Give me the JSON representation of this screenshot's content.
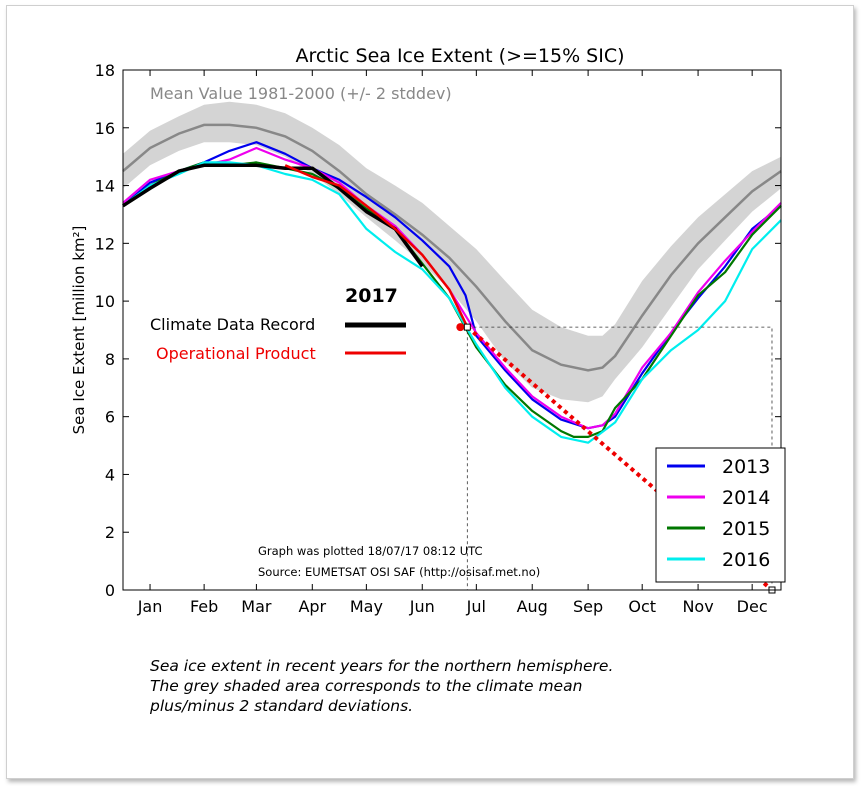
{
  "chart_data": {
    "type": "line",
    "title": "Arctic Sea Ice Extent (>=15% SIC)",
    "ylabel": "Sea Ice Extent [million km²]",
    "xlabel": "",
    "ylim": [
      0,
      18
    ],
    "yticks": [
      "0",
      "2",
      "4",
      "6",
      "8",
      "10",
      "12",
      "14",
      "16",
      "18"
    ],
    "xlim": [
      0,
      365
    ],
    "month_labels": [
      "Jan",
      "Feb",
      "Mar",
      "Apr",
      "May",
      "Jun",
      "Jul",
      "Aug",
      "Sep",
      "Oct",
      "Nov",
      "Dec"
    ],
    "month_positions": [
      15,
      45,
      74,
      105,
      135,
      166,
      196,
      227,
      258,
      288,
      319,
      349
    ],
    "grid": false,
    "mean_label": "Mean Value 1981-2000 (+/- 2 stddev)",
    "mean": {
      "x": [
        0,
        15,
        31,
        45,
        59,
        74,
        90,
        105,
        120,
        135,
        151,
        166,
        181,
        196,
        212,
        227,
        243,
        258,
        266,
        273,
        288,
        304,
        319,
        334,
        349,
        365
      ],
      "values": [
        14.5,
        15.3,
        15.8,
        16.1,
        16.1,
        16.0,
        15.7,
        15.2,
        14.5,
        13.7,
        13.0,
        12.3,
        11.5,
        10.5,
        9.3,
        8.3,
        7.8,
        7.6,
        7.7,
        8.1,
        9.5,
        10.9,
        12.0,
        12.9,
        13.8,
        14.5
      ],
      "upper": [
        15.1,
        15.9,
        16.4,
        16.8,
        16.9,
        16.8,
        16.5,
        16.0,
        15.4,
        14.6,
        14.0,
        13.4,
        12.6,
        11.8,
        10.7,
        9.7,
        9.1,
        8.8,
        8.8,
        9.2,
        10.7,
        11.9,
        12.9,
        13.7,
        14.5,
        15.0
      ],
      "lower": [
        13.9,
        14.7,
        15.2,
        15.5,
        15.5,
        15.4,
        15.0,
        14.4,
        13.7,
        12.9,
        12.1,
        11.3,
        10.4,
        9.3,
        7.9,
        7.0,
        6.6,
        6.5,
        6.7,
        7.3,
        8.4,
        9.8,
        11.1,
        12.1,
        13.1,
        13.9
      ]
    },
    "series": [
      {
        "name": "2013",
        "color": "#0000ee",
        "x": [
          0,
          15,
          31,
          45,
          59,
          74,
          90,
          105,
          120,
          135,
          151,
          166,
          181,
          190,
          196,
          212,
          227,
          243,
          258,
          266,
          273,
          288,
          304,
          319,
          334,
          349,
          365
        ],
        "values": [
          13.3,
          14.1,
          14.5,
          14.8,
          15.2,
          15.5,
          15.1,
          14.6,
          14.2,
          13.6,
          12.9,
          12.1,
          11.2,
          10.2,
          8.8,
          7.6,
          6.6,
          5.9,
          5.6,
          5.7,
          6.0,
          7.5,
          8.9,
          10.1,
          11.2,
          12.5,
          13.3
        ]
      },
      {
        "name": "2014",
        "color": "#ee00ee",
        "x": [
          0,
          15,
          31,
          45,
          59,
          74,
          90,
          105,
          120,
          135,
          151,
          166,
          181,
          196,
          212,
          227,
          243,
          258,
          266,
          273,
          288,
          304,
          319,
          334,
          349,
          365
        ],
        "values": [
          13.4,
          14.2,
          14.5,
          14.7,
          14.9,
          15.3,
          14.9,
          14.6,
          14.1,
          13.3,
          12.6,
          11.6,
          10.4,
          8.9,
          7.7,
          6.7,
          6.0,
          5.6,
          5.7,
          6.1,
          7.7,
          8.9,
          10.3,
          11.4,
          12.4,
          13.4
        ]
      },
      {
        "name": "2015",
        "color": "#007700",
        "x": [
          0,
          15,
          31,
          45,
          59,
          74,
          90,
          105,
          120,
          135,
          151,
          166,
          181,
          196,
          212,
          227,
          243,
          250,
          258,
          266,
          273,
          288,
          304,
          319,
          334,
          349,
          365
        ],
        "values": [
          13.3,
          14.0,
          14.5,
          14.8,
          14.7,
          14.8,
          14.6,
          14.4,
          13.9,
          13.2,
          12.5,
          11.3,
          10.1,
          8.4,
          7.1,
          6.2,
          5.5,
          5.3,
          5.3,
          5.5,
          6.3,
          7.3,
          8.8,
          10.2,
          11.0,
          12.3,
          13.3
        ]
      },
      {
        "name": "2016",
        "color": "#00eeee",
        "x": [
          0,
          15,
          31,
          45,
          59,
          74,
          90,
          105,
          120,
          135,
          151,
          166,
          181,
          196,
          212,
          227,
          243,
          258,
          273,
          288,
          304,
          319,
          334,
          349,
          365
        ],
        "values": [
          13.3,
          14.0,
          14.4,
          14.8,
          14.8,
          14.7,
          14.4,
          14.2,
          13.7,
          12.5,
          11.7,
          11.1,
          10.1,
          8.5,
          7.0,
          6.0,
          5.3,
          5.1,
          5.8,
          7.3,
          8.3,
          9.0,
          10.0,
          11.8,
          12.8
        ]
      },
      {
        "name": "2017 Climate Data Record",
        "color": "#000000",
        "x": [
          0,
          15,
          31,
          45,
          59,
          74,
          90,
          105,
          120,
          135,
          151,
          166
        ],
        "values": [
          13.3,
          13.9,
          14.5,
          14.7,
          14.7,
          14.7,
          14.6,
          14.6,
          13.9,
          13.1,
          12.5,
          11.2
        ]
      },
      {
        "name": "2017 Operational Product",
        "color": "#ee0000",
        "x": [
          90,
          105,
          120,
          135,
          151,
          166,
          181,
          191
        ],
        "values": [
          14.7,
          14.3,
          14.0,
          13.3,
          12.5,
          11.6,
          10.4,
          9.1
        ]
      }
    ],
    "trend_line": {
      "x": [
        191,
        360
      ],
      "values": [
        9.1,
        0
      ]
    },
    "annotations": {
      "year_label": "2017",
      "cdr_label": "Climate Data Record",
      "op_label": "Operational Product",
      "plotted": "Graph was plotted 18/07/17 08:12 UTC",
      "source": "Source: EUMETSAT OSI SAF (http://osisaf.met.no)"
    },
    "legend": [
      "2013",
      "2014",
      "2015",
      "2016"
    ],
    "legend_position": "lower-right",
    "colors": {
      "mean_line": "#888888",
      "mean_band": "#d4d4d4",
      "cdr": "#000000",
      "operational": "#ee0000",
      "operational_label": "#ee0000"
    }
  },
  "caption": {
    "line1": "Sea ice extent in recent years for the northern hemisphere.",
    "line2": "The grey shaded area corresponds to the climate mean",
    "line3": "plus/minus 2 standard deviations."
  }
}
